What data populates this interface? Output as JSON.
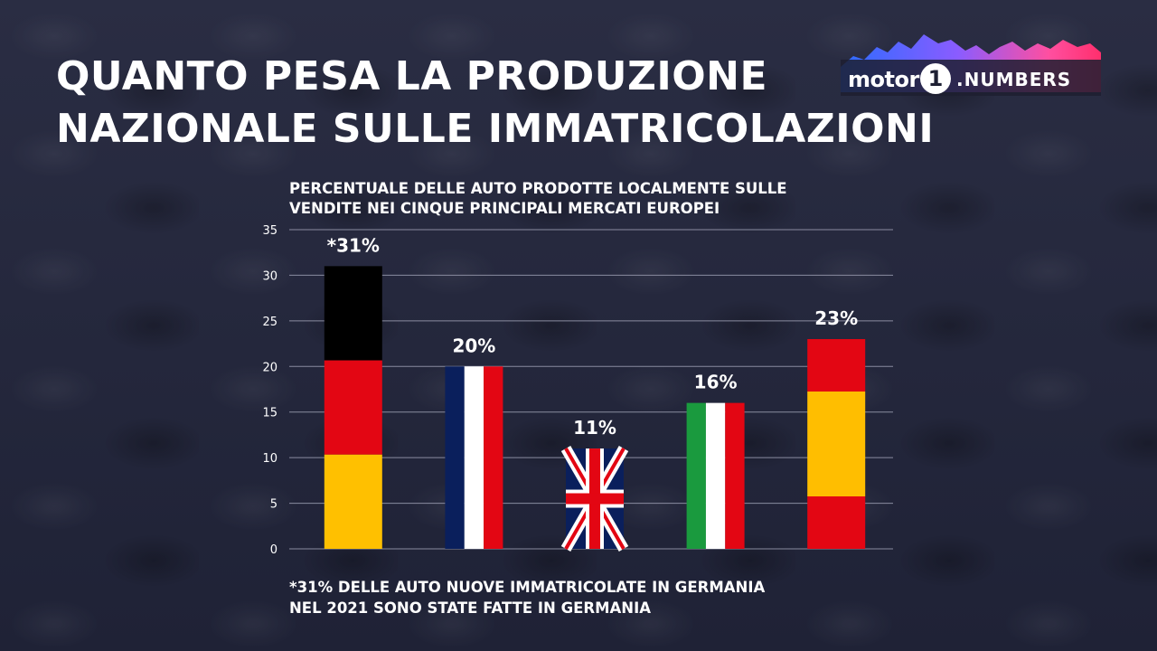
{
  "title": {
    "line1": "QUANTO PESA LA PRODUZIONE",
    "line2": "NAZIONALE SULLE IMMATRICOLAZIONI"
  },
  "logo": {
    "word1": "motor",
    "digit": "1",
    "word2": ".NUMBERS"
  },
  "subtitle": {
    "line1": "PERCENTUALE DELLE AUTO PRODOTTE LOCALMENTE SULLE",
    "line2": "VENDITE NEI CINQUE PRINCIPALI MERCATI EUROPEI"
  },
  "footnote": {
    "line1": "*31% DELLE AUTO NUOVE IMMATRICOLATE IN GERMANIA",
    "line2": "NEL 2021 SONO STATE FATTE IN GERMANIA"
  },
  "chart_data": {
    "type": "bar",
    "categories": [
      "Germania",
      "Francia",
      "Regno Unito",
      "Italia",
      "Spagna"
    ],
    "values": [
      31,
      20,
      11,
      16,
      23
    ],
    "value_labels": [
      "*31%",
      "20%",
      "11%",
      "16%",
      "23%"
    ],
    "bar_fills": [
      "germany-flag",
      "france-flag",
      "uk-flag",
      "italy-flag",
      "spain-flag"
    ],
    "ylim": [
      0,
      35
    ],
    "yticks": [
      0,
      5,
      10,
      15,
      20,
      25,
      30,
      35
    ],
    "grid": true,
    "colors": {
      "black": "#000000",
      "red": "#e30613",
      "gold": "#ffc000",
      "blue": "#0a1f5c",
      "white": "#ffffff",
      "green": "#1a9a3e",
      "spain_red": "#e30613",
      "spain_yellow": "#ffbe00",
      "gridline": "#8a8ca0"
    }
  }
}
